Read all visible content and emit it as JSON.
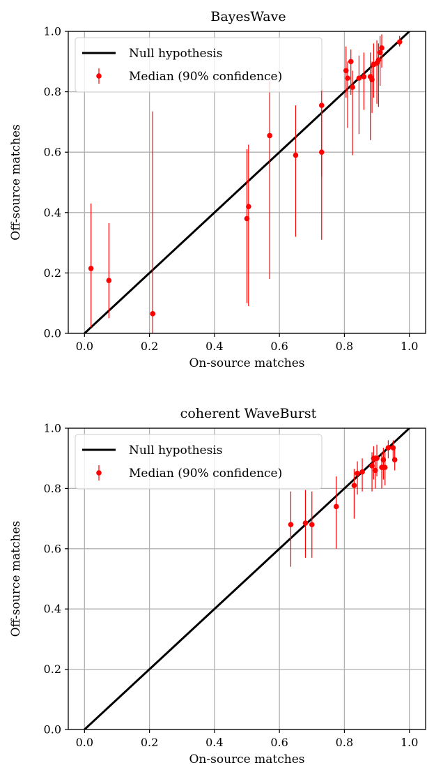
{
  "chart_data": [
    {
      "type": "scatter",
      "title": "BayesWave",
      "xlabel": "On-source matches",
      "ylabel": "Off-source matches",
      "xlim": [
        -0.05,
        1.05
      ],
      "ylim": [
        0.0,
        1.0
      ],
      "xticks": [
        "0.0",
        "0.2",
        "0.4",
        "0.6",
        "0.8",
        "1.0"
      ],
      "yticks": [
        "0.0",
        "0.2",
        "0.4",
        "0.6",
        "0.8",
        "1.0"
      ],
      "grid": true,
      "legend_position": "top-left",
      "series": [
        {
          "name": "Null hypothesis",
          "kind": "line",
          "color": "#000000",
          "x": [
            0.0,
            1.05
          ],
          "y": [
            0.0,
            1.05
          ]
        },
        {
          "name": "Median (90% confidence)",
          "kind": "errorbar",
          "color": "#ff0000",
          "points": [
            {
              "x": 0.02,
              "y": 0.215,
              "lo": 0.02,
              "hi": 0.43
            },
            {
              "x": 0.075,
              "y": 0.175,
              "lo": 0.05,
              "hi": 0.365
            },
            {
              "x": 0.21,
              "y": 0.065,
              "lo": 0.0,
              "hi": 0.735
            },
            {
              "x": 0.5,
              "y": 0.38,
              "lo": 0.1,
              "hi": 0.61
            },
            {
              "x": 0.505,
              "y": 0.42,
              "lo": 0.09,
              "hi": 0.625
            },
            {
              "x": 0.57,
              "y": 0.655,
              "lo": 0.18,
              "hi": 0.835
            },
            {
              "x": 0.65,
              "y": 0.59,
              "lo": 0.32,
              "hi": 0.755
            },
            {
              "x": 0.73,
              "y": 0.6,
              "lo": 0.31,
              "hi": 0.74
            },
            {
              "x": 0.73,
              "y": 0.755,
              "lo": 0.52,
              "hi": 0.845
            },
            {
              "x": 0.805,
              "y": 0.87,
              "lo": 0.78,
              "hi": 0.95
            },
            {
              "x": 0.81,
              "y": 0.845,
              "lo": 0.68,
              "hi": 0.9
            },
            {
              "x": 0.82,
              "y": 0.9,
              "lo": 0.79,
              "hi": 0.94
            },
            {
              "x": 0.825,
              "y": 0.815,
              "lo": 0.59,
              "hi": 0.87
            },
            {
              "x": 0.845,
              "y": 0.845,
              "lo": 0.66,
              "hi": 0.92
            },
            {
              "x": 0.86,
              "y": 0.85,
              "lo": 0.74,
              "hi": 0.93
            },
            {
              "x": 0.88,
              "y": 0.85,
              "lo": 0.64,
              "hi": 0.93
            },
            {
              "x": 0.885,
              "y": 0.84,
              "lo": 0.73,
              "hi": 0.9
            },
            {
              "x": 0.89,
              "y": 0.89,
              "lo": 0.78,
              "hi": 0.96
            },
            {
              "x": 0.9,
              "y": 0.895,
              "lo": 0.76,
              "hi": 0.97
            },
            {
              "x": 0.905,
              "y": 0.905,
              "lo": 0.75,
              "hi": 0.96
            },
            {
              "x": 0.91,
              "y": 0.93,
              "lo": 0.82,
              "hi": 0.985
            },
            {
              "x": 0.915,
              "y": 0.945,
              "lo": 0.88,
              "hi": 0.99
            },
            {
              "x": 0.97,
              "y": 0.965,
              "lo": 0.95,
              "hi": 0.985
            }
          ]
        }
      ]
    },
    {
      "type": "scatter",
      "title": "coherent WaveBurst",
      "xlabel": "On-source matches",
      "ylabel": "Off-source matches",
      "xlim": [
        -0.05,
        1.05
      ],
      "ylim": [
        0.0,
        1.0
      ],
      "xticks": [
        "0.0",
        "0.2",
        "0.4",
        "0.6",
        "0.8",
        "1.0"
      ],
      "yticks": [
        "0.0",
        "0.2",
        "0.4",
        "0.6",
        "0.8",
        "1.0"
      ],
      "grid": true,
      "legend_position": "top-left",
      "series": [
        {
          "name": "Null hypothesis",
          "kind": "line",
          "color": "#000000",
          "x": [
            0.0,
            1.05
          ],
          "y": [
            0.0,
            1.05
          ]
        },
        {
          "name": "Median (90% confidence)",
          "kind": "errorbar",
          "color": "#ff0000",
          "points": [
            {
              "x": 0.635,
              "y": 0.68,
              "lo": 0.54,
              "hi": 0.79
            },
            {
              "x": 0.68,
              "y": 0.685,
              "lo": 0.57,
              "hi": 0.795
            },
            {
              "x": 0.7,
              "y": 0.68,
              "lo": 0.57,
              "hi": 0.79
            },
            {
              "x": 0.775,
              "y": 0.74,
              "lo": 0.6,
              "hi": 0.84
            },
            {
              "x": 0.83,
              "y": 0.81,
              "lo": 0.7,
              "hi": 0.865
            },
            {
              "x": 0.84,
              "y": 0.85,
              "lo": 0.78,
              "hi": 0.89
            },
            {
              "x": 0.855,
              "y": 0.855,
              "lo": 0.79,
              "hi": 0.9
            },
            {
              "x": 0.885,
              "y": 0.875,
              "lo": 0.79,
              "hi": 0.92
            },
            {
              "x": 0.89,
              "y": 0.9,
              "lo": 0.83,
              "hi": 0.94
            },
            {
              "x": 0.895,
              "y": 0.86,
              "lo": 0.8,
              "hi": 0.91
            },
            {
              "x": 0.9,
              "y": 0.9,
              "lo": 0.84,
              "hi": 0.945
            },
            {
              "x": 0.915,
              "y": 0.87,
              "lo": 0.8,
              "hi": 0.92
            },
            {
              "x": 0.92,
              "y": 0.895,
              "lo": 0.83,
              "hi": 0.935
            },
            {
              "x": 0.925,
              "y": 0.87,
              "lo": 0.81,
              "hi": 0.92
            },
            {
              "x": 0.935,
              "y": 0.935,
              "lo": 0.9,
              "hi": 0.96
            },
            {
              "x": 0.95,
              "y": 0.935,
              "lo": 0.9,
              "hi": 0.96
            },
            {
              "x": 0.955,
              "y": 0.895,
              "lo": 0.86,
              "hi": 0.93
            }
          ]
        }
      ]
    }
  ]
}
